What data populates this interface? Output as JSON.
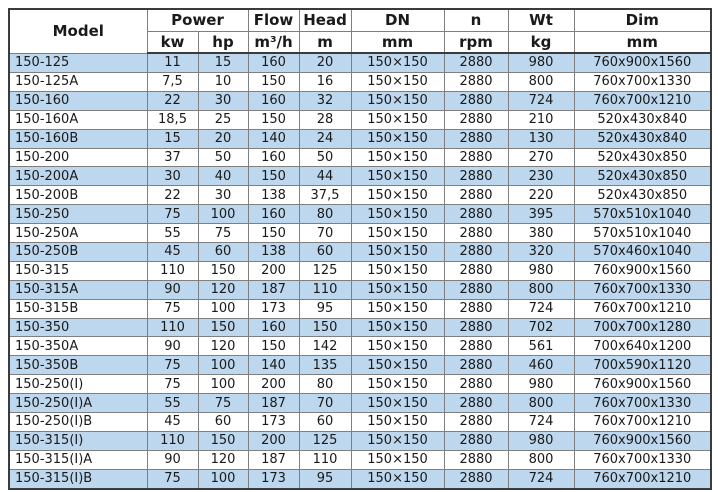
{
  "chart_data": {
    "type": "table",
    "header": {
      "row1": [
        "Model",
        "Power",
        "Flow",
        "Head",
        "DN",
        "n",
        "Wt",
        "Dim"
      ],
      "row2": [
        "kw",
        "hp",
        "m³/h",
        "m",
        "mm",
        "rpm",
        "kg",
        "mm"
      ]
    },
    "rows": [
      [
        "150-125",
        "11",
        "15",
        "160",
        "20",
        "150×150",
        "2880",
        "980",
        "760x900x1560"
      ],
      [
        "150-125A",
        "7,5",
        "10",
        "150",
        "16",
        "150×150",
        "2880",
        "800",
        "760x700x1330"
      ],
      [
        "150-160",
        "22",
        "30",
        "160",
        "32",
        "150×150",
        "2880",
        "724",
        "760x700x1210"
      ],
      [
        "150-160A",
        "18,5",
        "25",
        "150",
        "28",
        "150×150",
        "2880",
        "210",
        "520x430x840"
      ],
      [
        "150-160B",
        "15",
        "20",
        "140",
        "24",
        "150×150",
        "2880",
        "130",
        "520x430x840"
      ],
      [
        "150-200",
        "37",
        "50",
        "160",
        "50",
        "150×150",
        "2880",
        "270",
        "520x430x850"
      ],
      [
        "150-200A",
        "30",
        "40",
        "150",
        "44",
        "150×150",
        "2880",
        "230",
        "520x430x850"
      ],
      [
        "150-200B",
        "22",
        "30",
        "138",
        "37,5",
        "150×150",
        "2880",
        "220",
        "520x430x850"
      ],
      [
        "150-250",
        "75",
        "100",
        "160",
        "80",
        "150×150",
        "2880",
        "395",
        "570x510x1040"
      ],
      [
        "150-250A",
        "55",
        "75",
        "150",
        "70",
        "150×150",
        "2880",
        "380",
        "570x510x1040"
      ],
      [
        "150-250B",
        "45",
        "60",
        "138",
        "60",
        "150×150",
        "2880",
        "320",
        "570x460x1040"
      ],
      [
        "150-315",
        "110",
        "150",
        "200",
        "125",
        "150×150",
        "2880",
        "980",
        "760x900x1560"
      ],
      [
        "150-315A",
        "90",
        "120",
        "187",
        "110",
        "150×150",
        "2880",
        "800",
        "760x700x1330"
      ],
      [
        "150-315B",
        "75",
        "100",
        "173",
        "95",
        "150×150",
        "2880",
        "724",
        "760x700x1210"
      ],
      [
        "150-350",
        "110",
        "150",
        "160",
        "150",
        "150×150",
        "2880",
        "702",
        "700x700x1280"
      ],
      [
        "150-350A",
        "90",
        "120",
        "150",
        "142",
        "150×150",
        "2880",
        "561",
        "700x640x1200"
      ],
      [
        "150-350B",
        "75",
        "100",
        "140",
        "135",
        "150×150",
        "2880",
        "460",
        "700x590x1120"
      ],
      [
        "150-250(I)",
        "75",
        "100",
        "200",
        "80",
        "150×150",
        "2880",
        "980",
        "760x900x1560"
      ],
      [
        "150-250(I)A",
        "55",
        "75",
        "187",
        "70",
        "150×150",
        "2880",
        "800",
        "760x700x1330"
      ],
      [
        "150-250(I)B",
        "45",
        "60",
        "173",
        "60",
        "150×150",
        "2880",
        "724",
        "760x700x1210"
      ],
      [
        "150-315(I)",
        "110",
        "150",
        "200",
        "125",
        "150×150",
        "2880",
        "980",
        "760x900x1560"
      ],
      [
        "150-315(I)A",
        "90",
        "120",
        "187",
        "110",
        "150×150",
        "2880",
        "800",
        "760x700x1330"
      ],
      [
        "150-315(I)B",
        "75",
        "100",
        "173",
        "95",
        "150×150",
        "2880",
        "724",
        "760x700x1210"
      ]
    ]
  },
  "header": {
    "model": "Model",
    "power": "Power",
    "flow": "Flow",
    "head": "Head",
    "dn": "DN",
    "n": "n",
    "wt": "Wt",
    "dim": "Dim",
    "kw": "kw",
    "hp": "hp",
    "flow_unit": "m³/h",
    "head_unit": "m",
    "dn_unit": "mm",
    "n_unit": "rpm",
    "wt_unit": "kg",
    "dim_unit": "mm"
  },
  "colors": {
    "row_alt": "#bdd7ee",
    "row_base": "#ffffff",
    "grid": "#7f7f7f",
    "outer_border": "#3b3b3b",
    "text": "#1a1a1a"
  }
}
